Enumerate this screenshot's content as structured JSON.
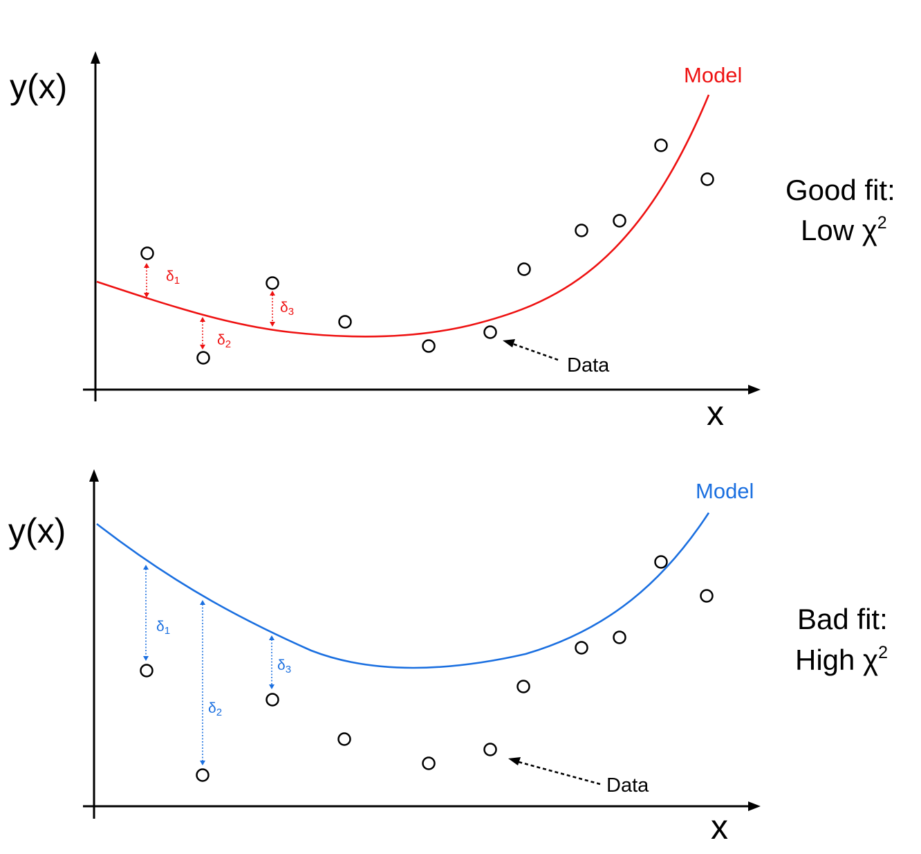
{
  "colors": {
    "good_model": "#ee1111",
    "bad_model": "#1a6fe0",
    "axis": "#000000"
  },
  "panels": [
    {
      "id": "good",
      "y_axis_label": "y(x)",
      "x_axis_label": "x",
      "model_label": "Model",
      "model_color": "#ee1111",
      "data_label": "Data",
      "verdict_line1": "Good fit:",
      "verdict_line2_text": "Low χ",
      "verdict_line2_sup": "2",
      "residual_labels": [
        {
          "symbol": "δ",
          "sub": "1"
        },
        {
          "symbol": "δ",
          "sub": "2"
        },
        {
          "symbol": "δ",
          "sub": "3"
        }
      ]
    },
    {
      "id": "bad",
      "y_axis_label": "y(x)",
      "x_axis_label": "x",
      "model_label": "Model",
      "model_color": "#1a6fe0",
      "data_label": "Data",
      "verdict_line1": "Bad fit:",
      "verdict_line2_text": "High χ",
      "verdict_line2_sup": "2",
      "residual_labels": [
        {
          "symbol": "δ",
          "sub": "1"
        },
        {
          "symbol": "δ",
          "sub": "2"
        },
        {
          "symbol": "δ",
          "sub": "3"
        }
      ]
    }
  ]
}
